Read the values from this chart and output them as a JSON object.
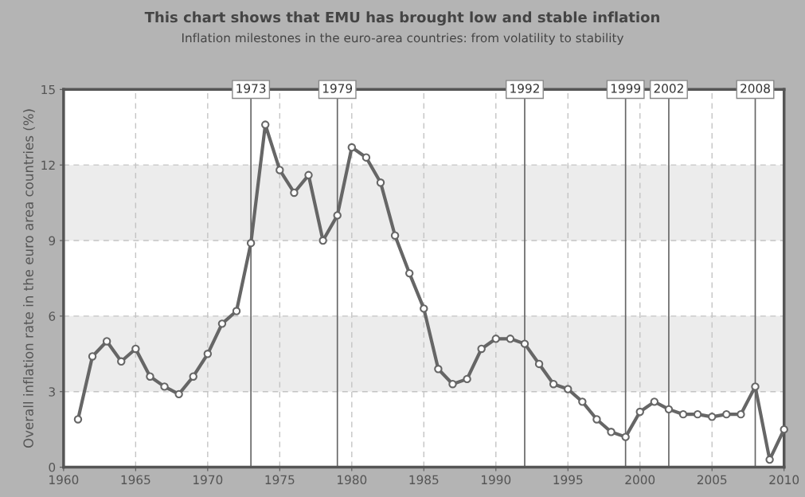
{
  "chart_data": {
    "type": "line",
    "title": "This chart shows that EMU has brought low and stable inflation",
    "subtitle": "Inflation milestones in the euro-area countries: from volatility to stability",
    "ylabel": "Overall inflation rate in the euro area countries (%)",
    "x": [
      1961,
      1962,
      1963,
      1964,
      1965,
      1966,
      1967,
      1968,
      1969,
      1970,
      1971,
      1972,
      1973,
      1974,
      1975,
      1976,
      1977,
      1978,
      1979,
      1980,
      1981,
      1982,
      1983,
      1984,
      1985,
      1986,
      1987,
      1988,
      1989,
      1990,
      1991,
      1992,
      1993,
      1994,
      1995,
      1996,
      1997,
      1998,
      1999,
      2000,
      2001,
      2002,
      2003,
      2004,
      2005,
      2006,
      2007,
      2008,
      2009,
      2010
    ],
    "series": [
      {
        "color": "#666666",
        "values": [
          1.9,
          4.4,
          5.0,
          4.2,
          4.7,
          3.6,
          3.2,
          2.9,
          3.6,
          4.5,
          5.7,
          6.2,
          8.9,
          13.6,
          11.8,
          10.9,
          11.6,
          9.0,
          10.0,
          12.7,
          12.3,
          11.3,
          9.2,
          7.7,
          6.3,
          3.9,
          3.3,
          3.5,
          4.7,
          5.1,
          5.1,
          4.9,
          4.1,
          3.3,
          3.1,
          2.6,
          1.9,
          1.4,
          1.2,
          2.2,
          2.6,
          2.3,
          2.1,
          2.1,
          2.0,
          2.1,
          2.1,
          3.2,
          0.3,
          1.5
        ]
      }
    ],
    "marker": "circle",
    "line_style": "solid",
    "xlim": [
      1960,
      2010
    ],
    "xticks": [
      1960,
      1965,
      1970,
      1975,
      1980,
      1985,
      1990,
      1995,
      2000,
      2005,
      2010
    ],
    "ylim": [
      0,
      15
    ],
    "yticks": [
      0,
      3,
      6,
      9,
      12,
      15
    ],
    "grid": true,
    "legend": false,
    "bands": [
      {
        "axis": "y",
        "from": 3,
        "to": 6,
        "color": "#ececec"
      },
      {
        "axis": "y",
        "from": 9,
        "to": 12,
        "color": "#ececec"
      }
    ],
    "ref_lines": [
      {
        "axis": "x",
        "value": 1973,
        "label": "1973",
        "color": "#666666"
      },
      {
        "axis": "x",
        "value": 1979,
        "label": "1979",
        "color": "#666666"
      },
      {
        "axis": "x",
        "value": 1992,
        "label": "1992",
        "color": "#666666"
      },
      {
        "axis": "x",
        "value": 1999,
        "label": "1999",
        "color": "#666666"
      },
      {
        "axis": "x",
        "value": 2002,
        "label": "2002",
        "color": "#666666"
      },
      {
        "axis": "x",
        "value": 2008,
        "label": "2008",
        "color": "#666666"
      }
    ]
  }
}
